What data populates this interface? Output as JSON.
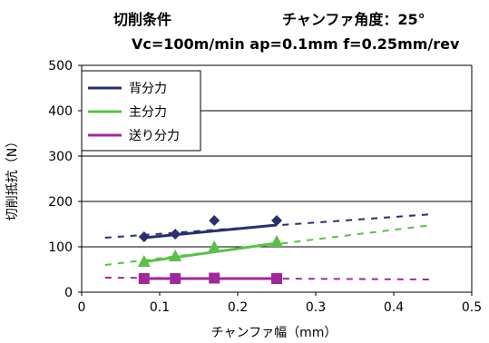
{
  "chart_data": {
    "type": "scatter",
    "title_conditions": "切削条件",
    "title_chamfer": "チャンファ角度：25°",
    "subtitle": "Vc=100m/min  ap=0.1mm  f=0.25mm/rev",
    "xlabel": "チャンファ幅（mm）",
    "ylabel": "切削抵抗（N）",
    "xlim": [
      0,
      0.5
    ],
    "ylim": [
      0,
      500
    ],
    "xticks": [
      0,
      0.1,
      0.2,
      0.3,
      0.4,
      0.5
    ],
    "yticks": [
      0,
      100,
      200,
      300,
      400,
      500
    ],
    "grid": "horizontal",
    "legend_position": "top-left",
    "series": [
      {
        "name": "背分力",
        "color": "#2b2f6b",
        "marker": "diamond",
        "x": [
          0.08,
          0.12,
          0.17,
          0.25
        ],
        "y": [
          122,
          128,
          158,
          158
        ],
        "trend_solid": [
          [
            0.08,
            120
          ],
          [
            0.25,
            148
          ]
        ],
        "trend_dashed": [
          [
            0.03,
            120
          ],
          [
            0.45,
            172
          ]
        ]
      },
      {
        "name": "主分力",
        "color": "#5cbf4a",
        "marker": "triangle",
        "x": [
          0.08,
          0.12,
          0.17,
          0.25
        ],
        "y": [
          68,
          80,
          100,
          112
        ],
        "trend_solid": [
          [
            0.08,
            67
          ],
          [
            0.25,
            108
          ]
        ],
        "trend_dashed": [
          [
            0.03,
            60
          ],
          [
            0.45,
            148
          ]
        ]
      },
      {
        "name": "送り分力",
        "color": "#a0299a",
        "marker": "square",
        "x": [
          0.08,
          0.12,
          0.17,
          0.25
        ],
        "y": [
          30,
          30,
          31,
          30
        ],
        "trend_solid": [
          [
            0.08,
            30
          ],
          [
            0.25,
            30
          ]
        ],
        "trend_dashed": [
          [
            0.03,
            32
          ],
          [
            0.45,
            28
          ]
        ]
      }
    ]
  }
}
